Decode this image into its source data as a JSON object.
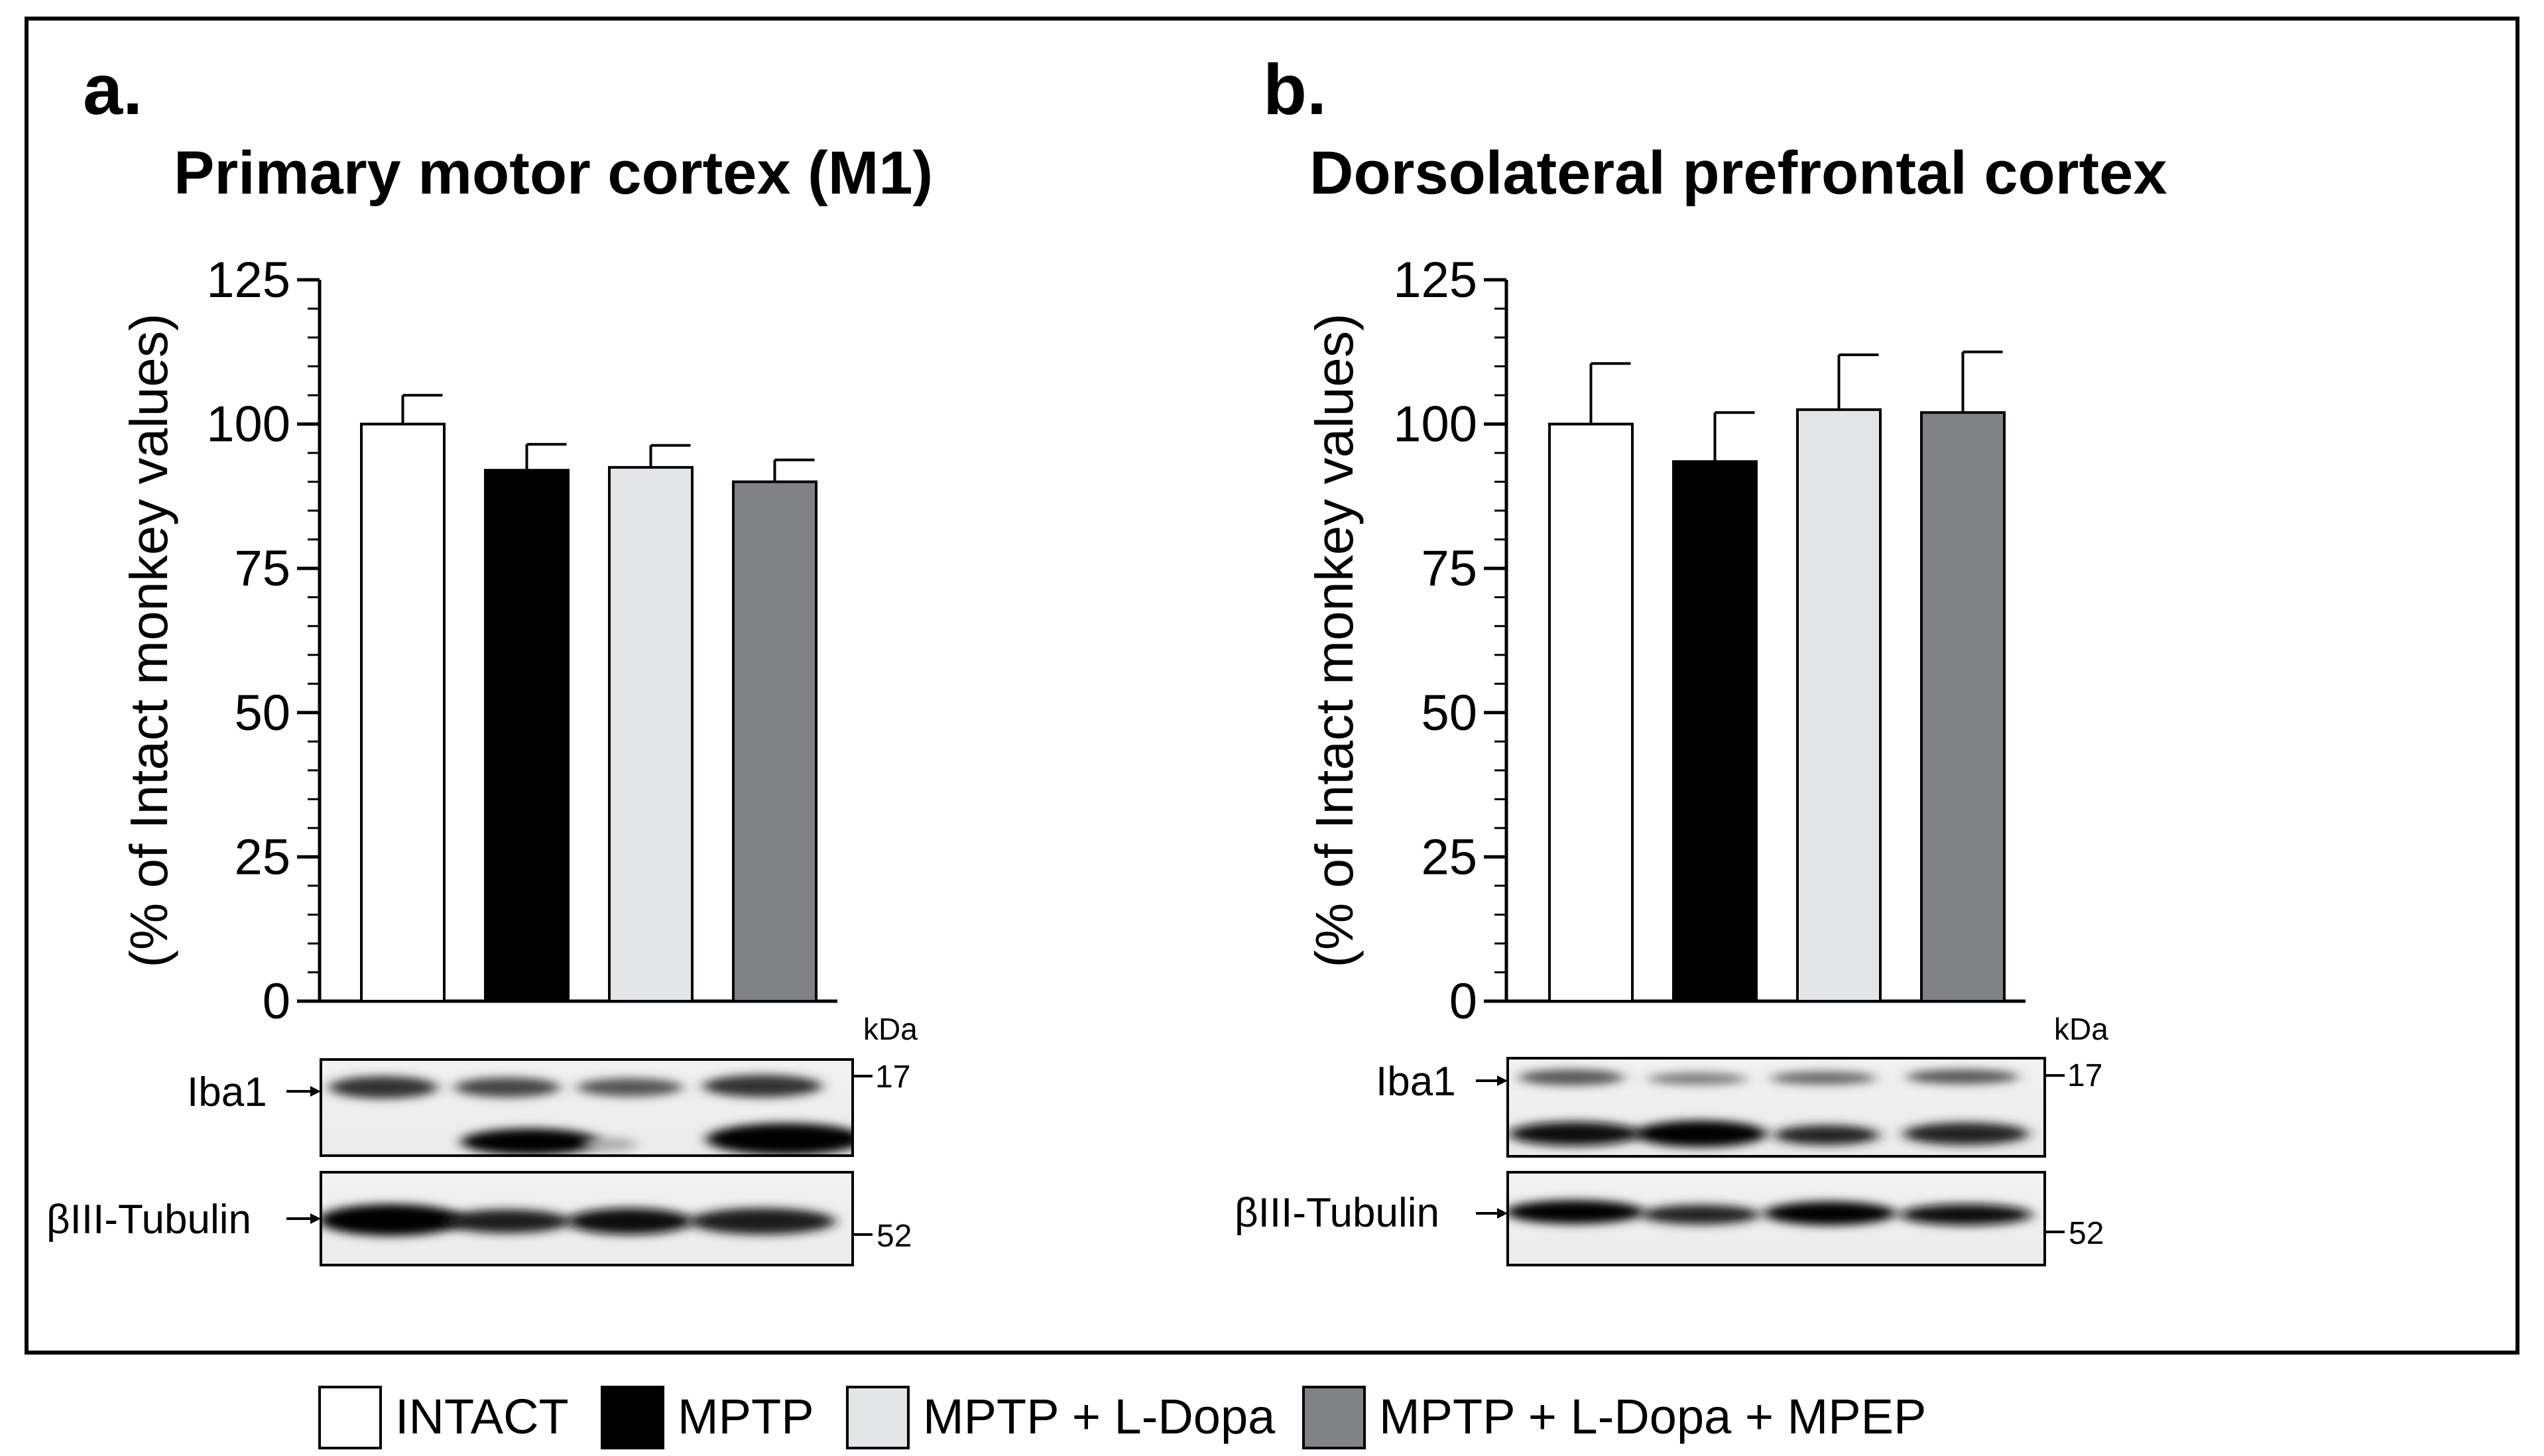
{
  "chart_data": [
    {
      "type": "bar",
      "panel_label": "a.",
      "title": "Primary motor cortex (M1)",
      "ylabel": "(% of Intact monkey values)",
      "xlabel": "",
      "ylim": [
        0,
        125
      ],
      "yticks": [
        0,
        25,
        50,
        75,
        100,
        125
      ],
      "categories": [
        "INTACT",
        "MPTP",
        "MPTP + L-Dopa",
        "MPTP + L-Dopa + MPEP"
      ],
      "values": [
        100,
        92,
        92.5,
        90
      ],
      "errors": [
        5,
        4.5,
        3.8,
        3.8
      ],
      "grid": false
    },
    {
      "type": "bar",
      "panel_label": "b.",
      "title": "Dorsolateral prefrontal cortex",
      "ylabel": "(% of Intact monkey values)",
      "xlabel": "",
      "ylim": [
        0,
        125
      ],
      "yticks": [
        0,
        25,
        50,
        75,
        100,
        125
      ],
      "categories": [
        "INTACT",
        "MPTP",
        "MPTP + L-Dopa",
        "MPTP + L-Dopa + MPEP"
      ],
      "values": [
        100,
        93.5,
        102.5,
        102
      ],
      "errors": [
        10.5,
        8.5,
        9.5,
        10.5
      ],
      "grid": false
    }
  ],
  "blots": {
    "kda_label": "kDa",
    "iba1_label": "Iba1",
    "tubulin_label": "βIII-Tubulin",
    "marker_17": "17",
    "marker_52": "52"
  },
  "legend": {
    "items": [
      {
        "label": "INTACT",
        "color": "#ffffff"
      },
      {
        "label": "MPTP",
        "color": "#000000"
      },
      {
        "label": "MPTP + L-Dopa",
        "color": "#e4e5e7"
      },
      {
        "label": "MPTP + L-Dopa + MPEP",
        "color": "#818285"
      }
    ]
  }
}
